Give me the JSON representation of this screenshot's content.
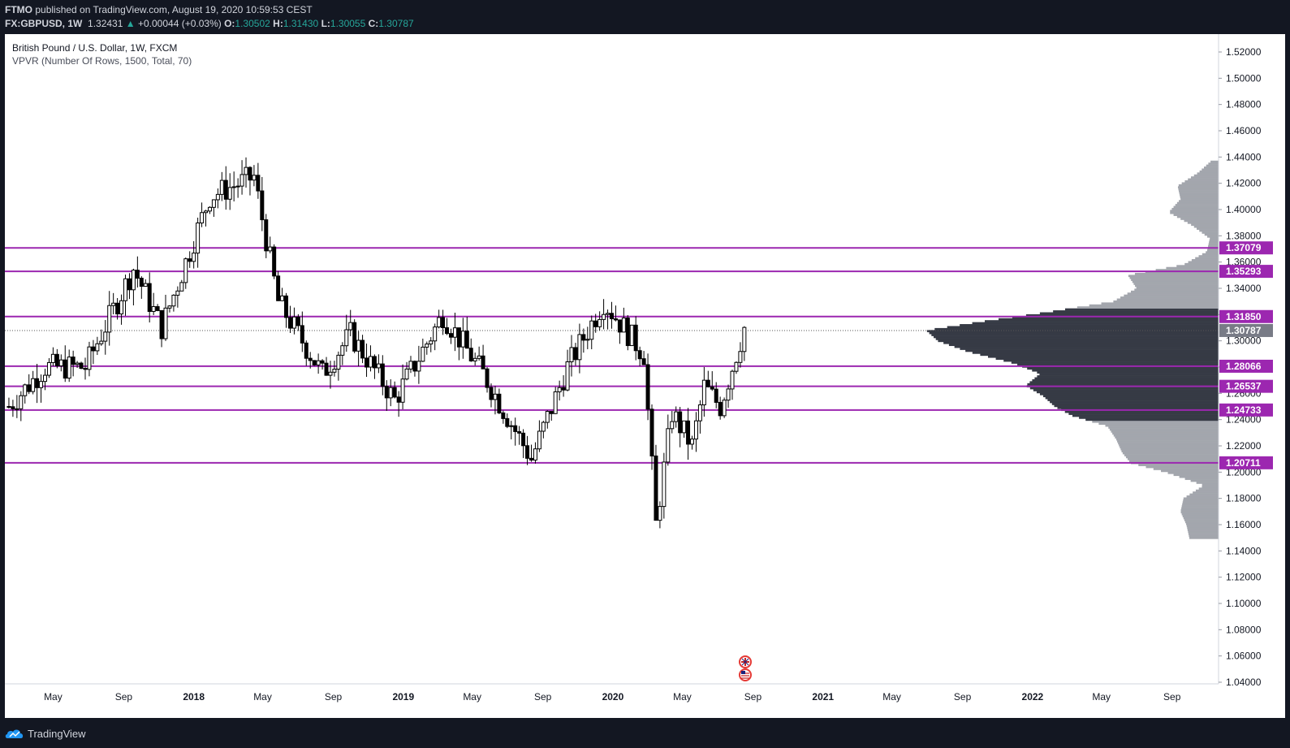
{
  "header": {
    "publisher": "FTMO",
    "published_text": "published on TradingView.com, August 19, 2020 10:59:53 CEST",
    "symbol": "FX:GBPUSD, 1W",
    "last": "1.32431",
    "arrow": "▲",
    "change": "+0.00044 (+0.03%)",
    "o_label": "O:",
    "o_value": "1.30502",
    "h_label": "H:",
    "h_value": "1.31430",
    "l_label": "L:",
    "l_value": "1.30055",
    "c_label": "C:",
    "c_value": "1.30787"
  },
  "legend": {
    "title": "British Pound / U.S. Dollar, 1W, FXCM",
    "indicator": "VPVR (Number Of Rows, 1500, Total, 70)"
  },
  "footer": {
    "brand": "TradingView"
  },
  "colors": {
    "level_line": "#9c27b0",
    "level_label_bg": "#9c27b0",
    "vp_dark": "#363a45",
    "vp_light": "#a3a6ad",
    "candle": "#000000",
    "axis_text": "#131722",
    "background": "#131722"
  },
  "chart_data": {
    "type": "candlestick",
    "symbol": "GBPUSD",
    "timeframe": "1W",
    "ylim": [
      1.04,
      1.53
    ],
    "y_ticks": [
      "1.52000",
      "1.50000",
      "1.48000",
      "1.46000",
      "1.44000",
      "1.42000",
      "1.40000",
      "1.38000",
      "1.36000",
      "1.34000",
      "1.32000",
      "1.30000",
      "1.28000",
      "1.26000",
      "1.24000",
      "1.22000",
      "1.20000",
      "1.18000",
      "1.16000",
      "1.14000",
      "1.12000",
      "1.10000",
      "1.08000",
      "1.06000",
      "1.04000"
    ],
    "x_ticks": [
      {
        "label": "May",
        "date": "2017-05-01",
        "bold": false
      },
      {
        "label": "Sep",
        "date": "2017-09-01",
        "bold": false
      },
      {
        "label": "2018",
        "date": "2018-01-01",
        "bold": true
      },
      {
        "label": "May",
        "date": "2018-05-01",
        "bold": false
      },
      {
        "label": "Sep",
        "date": "2018-09-01",
        "bold": false
      },
      {
        "label": "2019",
        "date": "2019-01-01",
        "bold": true
      },
      {
        "label": "May",
        "date": "2019-05-01",
        "bold": false
      },
      {
        "label": "Sep",
        "date": "2019-09-01",
        "bold": false
      },
      {
        "label": "2020",
        "date": "2020-01-01",
        "bold": true
      },
      {
        "label": "May",
        "date": "2020-05-01",
        "bold": false
      },
      {
        "label": "Sep",
        "date": "2020-09-01",
        "bold": false
      },
      {
        "label": "2021",
        "date": "2021-01-01",
        "bold": true
      },
      {
        "label": "May",
        "date": "2021-05-01",
        "bold": false
      },
      {
        "label": "Sep",
        "date": "2021-09-01",
        "bold": false
      },
      {
        "label": "2022",
        "date": "2022-01-01",
        "bold": true
      },
      {
        "label": "May",
        "date": "2022-05-01",
        "bold": false
      },
      {
        "label": "Sep",
        "date": "2022-09-01",
        "bold": false
      }
    ],
    "x_start": "2017-02-06",
    "x_end": "2022-11-21",
    "levels": [
      "1.37079",
      "1.35293",
      "1.31850",
      "1.28066",
      "1.26537",
      "1.24733",
      "1.20711"
    ],
    "current_price": "1.30787",
    "anchors": [
      {
        "date": "2017-02-13",
        "price": 1.25
      },
      {
        "date": "2017-04-17",
        "price": 1.28
      },
      {
        "date": "2017-06-26",
        "price": 1.28
      },
      {
        "date": "2017-09-18",
        "price": 1.355
      },
      {
        "date": "2017-11-06",
        "price": 1.31
      },
      {
        "date": "2018-01-29",
        "price": 1.41
      },
      {
        "date": "2018-04-16",
        "price": 1.425
      },
      {
        "date": "2018-05-28",
        "price": 1.33
      },
      {
        "date": "2018-08-13",
        "price": 1.275
      },
      {
        "date": "2018-10-01",
        "price": 1.305
      },
      {
        "date": "2018-12-17",
        "price": 1.255
      },
      {
        "date": "2019-03-11",
        "price": 1.32
      },
      {
        "date": "2019-05-20",
        "price": 1.275
      },
      {
        "date": "2019-08-12",
        "price": 1.21
      },
      {
        "date": "2019-10-14",
        "price": 1.28
      },
      {
        "date": "2019-12-16",
        "price": 1.33
      },
      {
        "date": "2020-02-24",
        "price": 1.29
      },
      {
        "date": "2020-03-16",
        "price": 1.16
      },
      {
        "date": "2020-04-13",
        "price": 1.245
      },
      {
        "date": "2020-05-18",
        "price": 1.22
      },
      {
        "date": "2020-06-08",
        "price": 1.265
      },
      {
        "date": "2020-07-06",
        "price": 1.25
      },
      {
        "date": "2020-08-17",
        "price": 1.31
      }
    ],
    "volume_profile": [
      {
        "price": 1.15,
        "value": 0.1
      },
      {
        "price": 1.16,
        "value": 0.11
      },
      {
        "price": 1.17,
        "value": 0.13
      },
      {
        "price": 1.18,
        "value": 0.12
      },
      {
        "price": 1.19,
        "value": 0.05
      },
      {
        "price": 1.2,
        "value": 0.18
      },
      {
        "price": 1.207,
        "value": 0.3
      },
      {
        "price": 1.215,
        "value": 0.33
      },
      {
        "price": 1.225,
        "value": 0.35
      },
      {
        "price": 1.235,
        "value": 0.38
      },
      {
        "price": 1.243,
        "value": 0.5
      },
      {
        "price": 1.25,
        "value": 0.56
      },
      {
        "price": 1.258,
        "value": 0.6
      },
      {
        "price": 1.266,
        "value": 0.66
      },
      {
        "price": 1.275,
        "value": 0.61
      },
      {
        "price": 1.283,
        "value": 0.7
      },
      {
        "price": 1.292,
        "value": 0.86
      },
      {
        "price": 1.3,
        "value": 0.96
      },
      {
        "price": 1.308,
        "value": 1.0
      },
      {
        "price": 1.315,
        "value": 0.8
      },
      {
        "price": 1.322,
        "value": 0.58
      },
      {
        "price": 1.33,
        "value": 0.36
      },
      {
        "price": 1.34,
        "value": 0.28
      },
      {
        "price": 1.35,
        "value": 0.31
      },
      {
        "price": 1.358,
        "value": 0.12
      },
      {
        "price": 1.368,
        "value": 0.04
      },
      {
        "price": 1.378,
        "value": 0.03
      },
      {
        "price": 1.388,
        "value": 0.09
      },
      {
        "price": 1.398,
        "value": 0.17
      },
      {
        "price": 1.408,
        "value": 0.13
      },
      {
        "price": 1.418,
        "value": 0.14
      },
      {
        "price": 1.428,
        "value": 0.07
      },
      {
        "price": 1.438,
        "value": 0.02
      }
    ],
    "volume_profile_dark_range": [
      1.24,
      1.325
    ],
    "grid": false
  }
}
